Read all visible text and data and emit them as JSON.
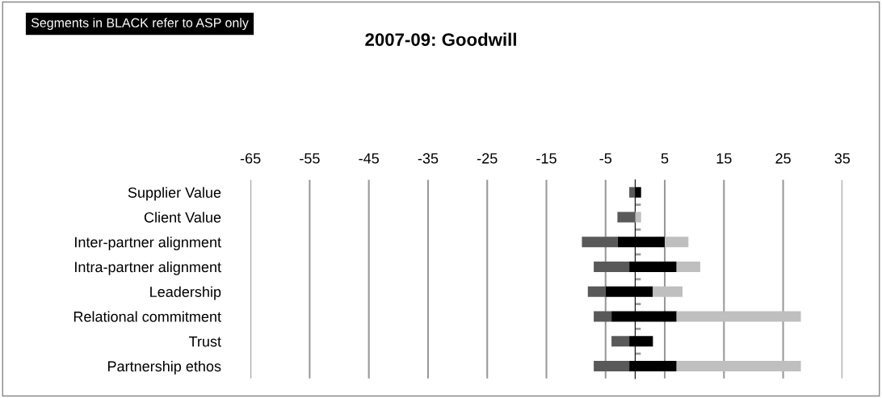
{
  "chart_data": {
    "type": "bar",
    "orientation": "horizontal",
    "stacked": true,
    "title": "2007-09: Goodwill",
    "annotations": [
      "Segments in BLACK refer to ASP only"
    ],
    "categories": [
      "Supplier Value",
      "Client Value",
      "Inter-partner alignment",
      "Intra-partner alignment",
      "Leadership",
      "Relational commitment",
      "Trust",
      "Partnership ethos"
    ],
    "series": [
      {
        "color": "#000000",
        "values": [
          0,
          0,
          -3,
          -1,
          -5,
          -4,
          -1,
          -1
        ]
      },
      {
        "color": "#595959",
        "values": [
          -1,
          -3,
          -6,
          -6,
          -3,
          -3,
          -3,
          -6
        ]
      },
      {
        "color": "#000000",
        "values": [
          1,
          0,
          5,
          7,
          3,
          7,
          3,
          7
        ]
      },
      {
        "color": "#bfbfbf",
        "values": [
          0,
          1,
          4,
          4,
          5,
          21,
          0,
          21
        ]
      }
    ],
    "xlim": [
      -65,
      35
    ],
    "xticks": [
      -65,
      -55,
      -45,
      -35,
      -25,
      -15,
      -5,
      5,
      15,
      25,
      35
    ],
    "grid": "x",
    "legend": false
  }
}
